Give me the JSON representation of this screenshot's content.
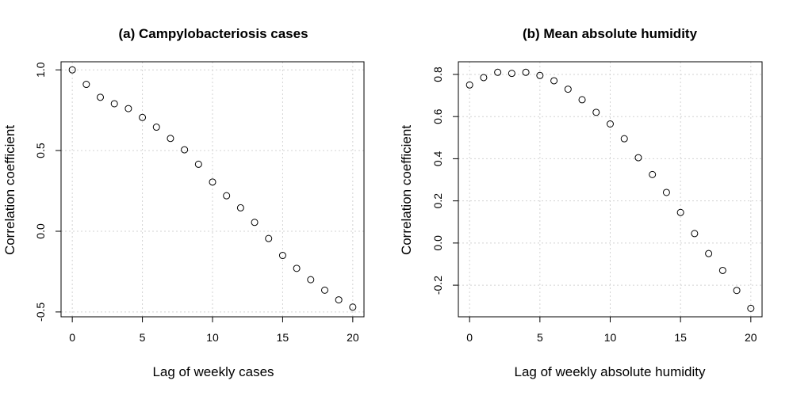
{
  "chart_data": [
    {
      "type": "scatter",
      "title": "(a) Campylobacteriosis cases",
      "xlabel": "Lag of weekly cases",
      "ylabel": "Correlation coefficient",
      "xlim": [
        -0.8,
        20.8
      ],
      "ylim": [
        -0.53,
        1.05
      ],
      "xticks": [
        0,
        5,
        10,
        15,
        20
      ],
      "xtick_labels": [
        "0",
        "5",
        "10",
        "15",
        "20"
      ],
      "yticks": [
        -0.5,
        0.0,
        0.5,
        1.0
      ],
      "ytick_labels": [
        "-0.5",
        "0.0",
        "0.5",
        "1.0"
      ],
      "grid": true,
      "series": [
        {
          "x": [
            0,
            1,
            2,
            3,
            4,
            5,
            6,
            7,
            8,
            9,
            10,
            11,
            12,
            13,
            14,
            15,
            16,
            17,
            18,
            19,
            20
          ],
          "y": [
            1.0,
            0.91,
            0.83,
            0.79,
            0.76,
            0.705,
            0.645,
            0.575,
            0.505,
            0.415,
            0.305,
            0.22,
            0.145,
            0.055,
            -0.045,
            -0.15,
            -0.23,
            -0.3,
            -0.365,
            -0.425,
            -0.47
          ]
        }
      ]
    },
    {
      "type": "scatter",
      "title": "(b) Mean absolute humidity",
      "xlabel": "Lag of weekly absolute humidity",
      "ylabel": "Correlation coefficient",
      "xlim": [
        -0.8,
        20.8
      ],
      "ylim": [
        -0.35,
        0.86
      ],
      "xticks": [
        0,
        5,
        10,
        15,
        20
      ],
      "xtick_labels": [
        "0",
        "5",
        "10",
        "15",
        "20"
      ],
      "yticks": [
        -0.2,
        0.0,
        0.2,
        0.4,
        0.6,
        0.8
      ],
      "ytick_labels": [
        "-0.2",
        "0.0",
        "0.2",
        "0.4",
        "0.6",
        "0.8"
      ],
      "grid": true,
      "series": [
        {
          "x": [
            0,
            1,
            2,
            3,
            4,
            5,
            6,
            7,
            8,
            9,
            10,
            11,
            12,
            13,
            14,
            15,
            16,
            17,
            18,
            19,
            20
          ],
          "y": [
            0.75,
            0.785,
            0.81,
            0.805,
            0.81,
            0.795,
            0.77,
            0.73,
            0.68,
            0.62,
            0.565,
            0.495,
            0.405,
            0.325,
            0.24,
            0.145,
            0.045,
            -0.05,
            -0.13,
            -0.225,
            -0.31
          ]
        }
      ]
    }
  ]
}
